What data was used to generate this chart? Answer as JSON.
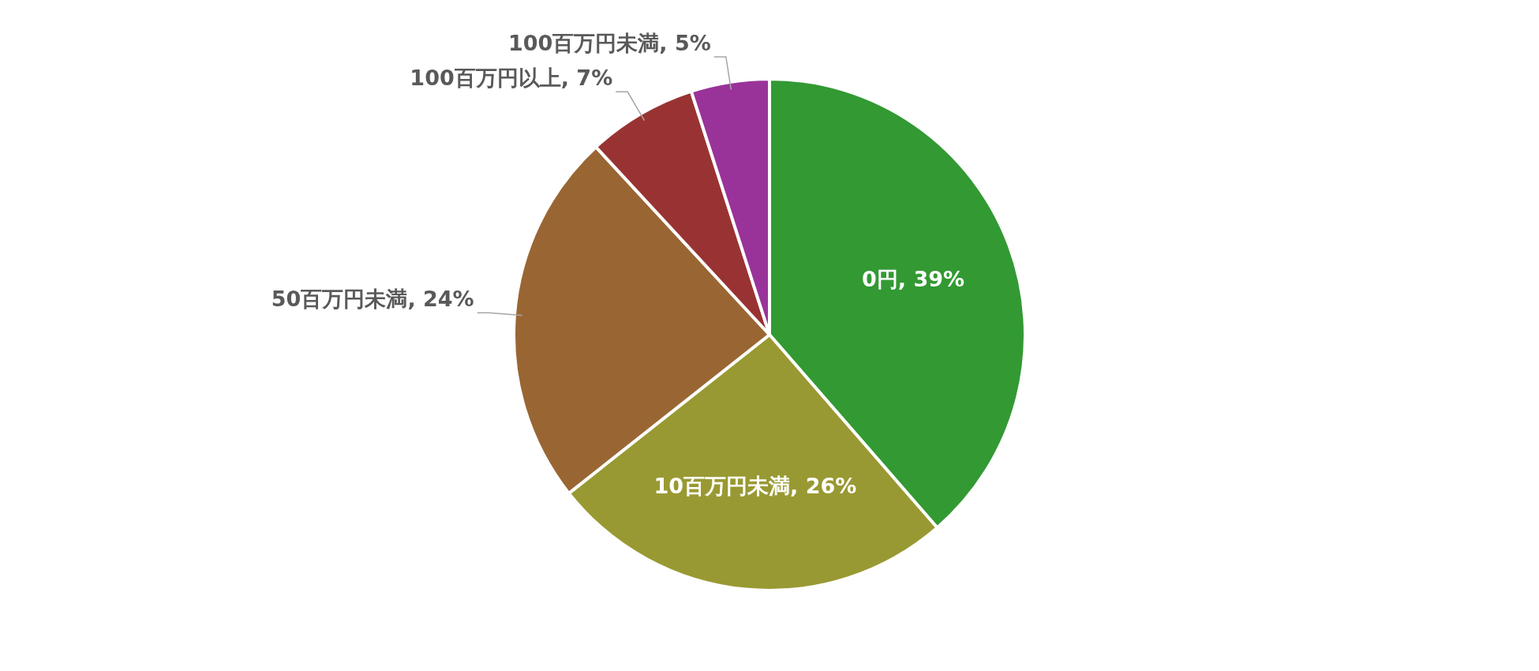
{
  "chart_data": {
    "type": "pie",
    "categories": [
      "0円",
      "10百万円未満",
      "50百万円未満",
      "100百万円以上",
      "100百万円未満"
    ],
    "values": [
      39,
      26,
      24,
      7,
      5
    ],
    "colors": [
      "#339933",
      "#999933",
      "#996633",
      "#993333",
      "#993399"
    ],
    "value_labels": [
      "39%",
      "26%",
      "24%",
      "7%",
      "5%"
    ],
    "legend": false
  }
}
